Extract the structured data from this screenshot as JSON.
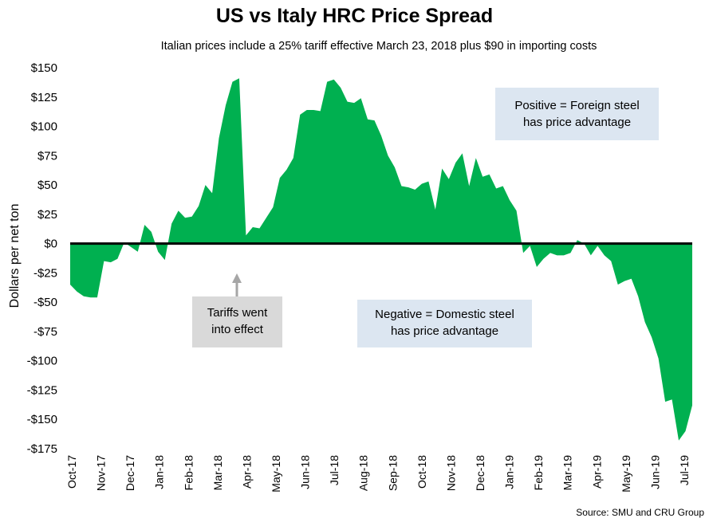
{
  "chart_data": {
    "type": "area",
    "title": "US vs Italy HRC Price Spread",
    "subtitle": "Italian prices include a 25% tariff effective March 23, 2018 plus $90 in importing costs",
    "ylabel": "Dollars per net ton",
    "xlabel": "",
    "ylim": [
      -175,
      150
    ],
    "yticks": [
      150,
      125,
      100,
      75,
      50,
      25,
      0,
      -25,
      -50,
      -75,
      -100,
      -125,
      -150,
      -175
    ],
    "ytick_labels": [
      "$150",
      "$125",
      "$100",
      "$75",
      "$50",
      "$25",
      "$0",
      "-$25",
      "-$50",
      "-$75",
      "-$100",
      "-$125",
      "-$150",
      "-$175"
    ],
    "x_period_start": "Oct-17",
    "x_period_end": "Jul-19",
    "xtick_labels": [
      "Oct-17",
      "Nov-17",
      "Dec-17",
      "Jan-18",
      "Feb-18",
      "Mar-18",
      "Apr-18",
      "May-18",
      "Jun-18",
      "Jul-18",
      "Aug-18",
      "Sep-18",
      "Oct-18",
      "Nov-18",
      "Dec-18",
      "Jan-19",
      "Feb-19",
      "Mar-19",
      "Apr-19",
      "May-19",
      "Jun-19",
      "Jul-19"
    ],
    "series": [
      {
        "name": "US vs Italy HRC price spread",
        "color": "#00b050",
        "values": [
          -35,
          -41,
          -45,
          -46,
          -46,
          -15,
          -16,
          -13,
          1,
          -3,
          -7,
          16,
          10,
          -7,
          -14,
          17,
          28,
          22,
          23,
          32,
          50,
          43,
          90,
          118,
          138,
          141,
          7,
          14,
          13,
          22,
          31,
          56,
          63,
          73,
          110,
          114,
          114,
          113,
          138,
          140,
          133,
          121,
          120,
          124,
          106,
          105,
          92,
          75,
          65,
          49,
          48,
          46,
          51,
          53,
          29,
          64,
          55,
          69,
          77,
          49,
          73,
          57,
          59,
          47,
          49,
          37,
          28,
          -8,
          -2,
          -20,
          -13,
          -8,
          -10,
          -10,
          -8,
          3,
          0,
          -10,
          -2,
          -10,
          -15,
          -35,
          -32,
          -30,
          -45,
          -67,
          -80,
          -98,
          -135,
          -133,
          -168,
          -160,
          -138
        ]
      }
    ],
    "annotations": [
      {
        "text": "Positive = Foreign steel has price advantage"
      },
      {
        "text": "Negative = Domestic steel has price advantage"
      },
      {
        "text": "Tariffs went into effect",
        "x_label": "Apr-18"
      }
    ],
    "source": "Source: SMU and CRU Group"
  },
  "annotations": {
    "positive_line1": "Positive = Foreign steel",
    "positive_line2": "has price advantage",
    "negative_line1": "Negative = Domestic steel",
    "negative_line2": "has price advantage",
    "tariff_line1": "Tariffs went",
    "tariff_line2": "into effect"
  }
}
